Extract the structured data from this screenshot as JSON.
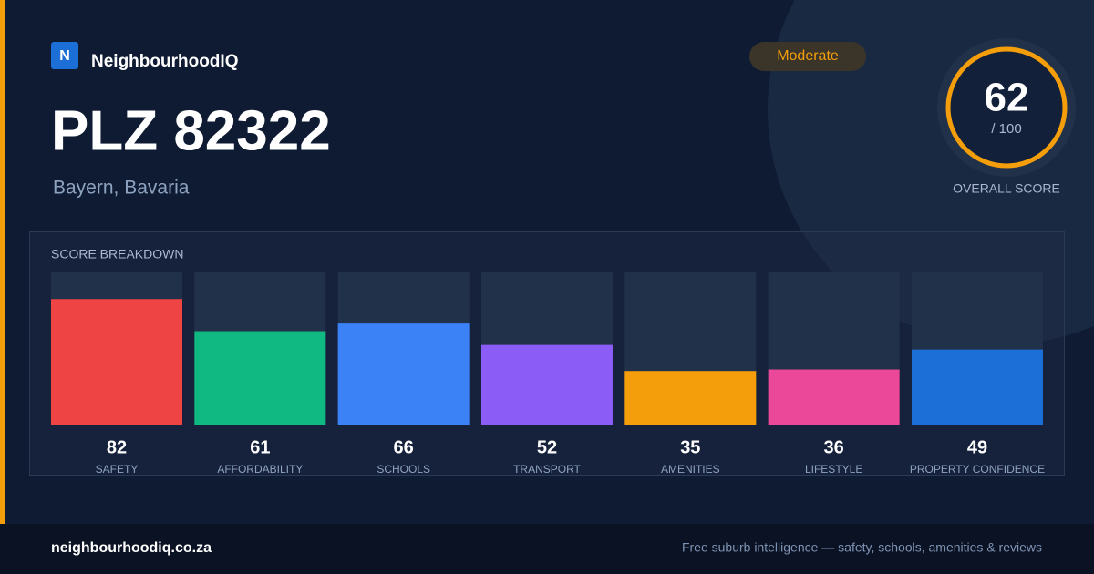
{
  "brand": "NeighbourhoodIQ",
  "logo_letter": "N",
  "title": "PLZ 82322",
  "subtitle": "Bayern, Bavaria",
  "badge": "Moderate",
  "overall": {
    "score": "62",
    "out_of": "/ 100",
    "label": "OVERALL SCORE"
  },
  "chart_data": {
    "type": "bar",
    "title": "SCORE BREAKDOWN",
    "categories": [
      "SAFETY",
      "AFFORDABILITY",
      "SCHOOLS",
      "TRANSPORT",
      "AMENITIES",
      "LIFESTYLE",
      "PROPERTY CONFIDENCE"
    ],
    "values": [
      82,
      61,
      66,
      52,
      35,
      36,
      49
    ],
    "colors": [
      "#ef4444",
      "#10b981",
      "#3b82f6",
      "#8b5cf6",
      "#f59e0b",
      "#ec4899",
      "#1d6fd8"
    ],
    "ylim": [
      0,
      100
    ]
  },
  "footer": {
    "site": "neighbourhoodiq.co.za",
    "tagline": "Free suburb intelligence — safety, schools, amenities & reviews"
  }
}
